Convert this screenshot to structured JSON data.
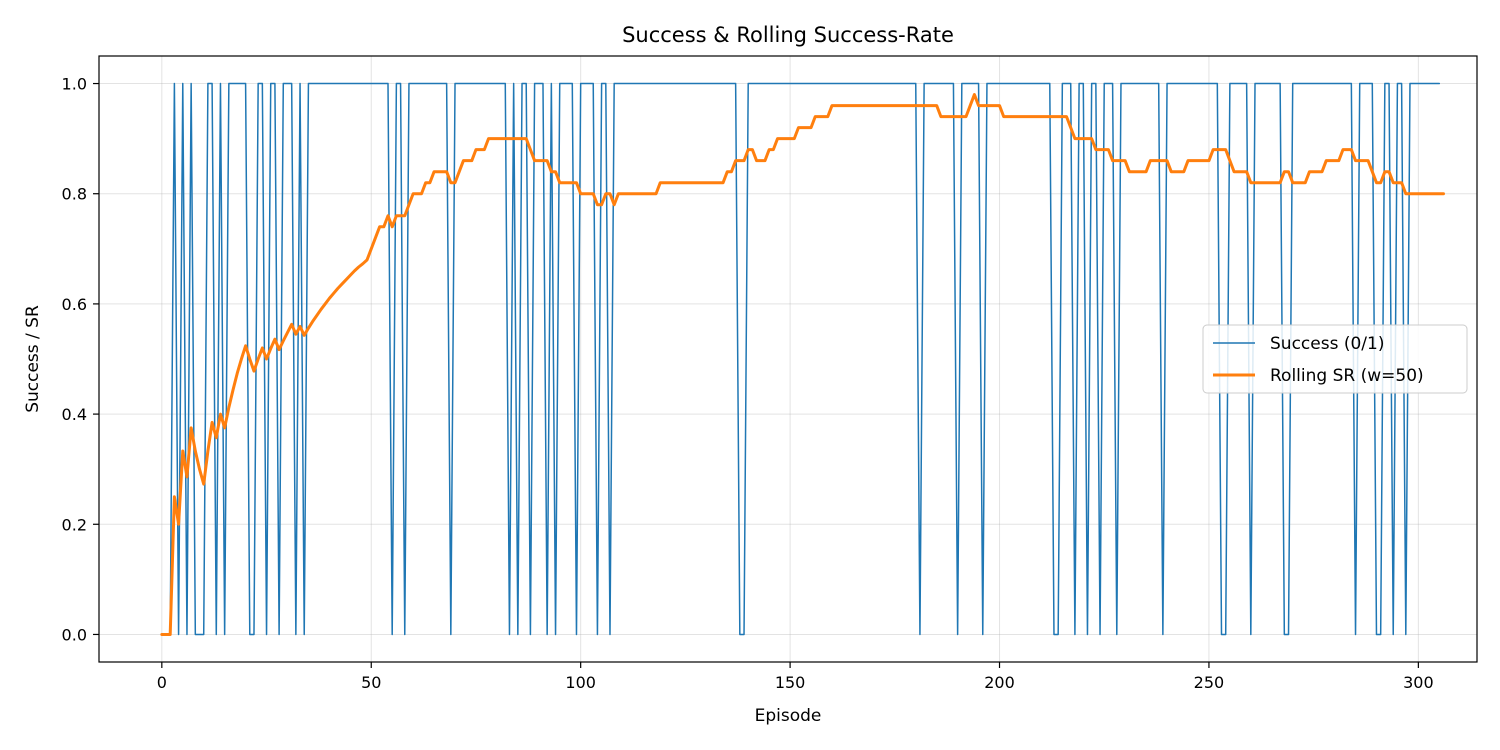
{
  "chart_data": {
    "type": "line",
    "title": "Success & Rolling Success-Rate",
    "xlabel": "Episode",
    "ylabel": "Success / SR",
    "xlim": [
      -15,
      314
    ],
    "ylim": [
      -0.05,
      1.05
    ],
    "xticks": [
      0,
      50,
      100,
      150,
      200,
      250,
      300
    ],
    "yticks": [
      0.0,
      0.2,
      0.4,
      0.6,
      0.8,
      1.0
    ],
    "xtick_labels": [
      "0",
      "50",
      "100",
      "150",
      "200",
      "250",
      "300"
    ],
    "ytick_labels": [
      "0.0",
      "0.2",
      "0.4",
      "0.6",
      "0.8",
      "1.0"
    ],
    "grid": true,
    "legend_position": "center-right",
    "colors": {
      "success": "#1f77b4",
      "rolling": "#ff7f0e"
    },
    "series": [
      {
        "name": "Success (0/1)",
        "x_start": 0,
        "values": [
          0,
          0,
          0,
          1,
          0,
          1,
          0,
          1,
          0,
          0,
          0,
          1,
          1,
          0,
          1,
          0,
          1,
          1,
          1,
          1,
          1,
          0,
          0,
          1,
          1,
          0,
          1,
          1,
          0,
          1,
          1,
          1,
          0,
          1,
          0,
          1,
          1,
          1,
          1,
          1,
          1,
          1,
          1,
          1,
          1,
          1,
          1,
          1,
          1,
          1,
          1,
          1,
          1,
          1,
          1,
          0,
          1,
          1,
          0,
          1,
          1,
          1,
          1,
          1,
          1,
          1,
          1,
          1,
          1,
          0,
          1,
          1,
          1,
          1,
          1,
          1,
          1,
          1,
          1,
          1,
          1,
          1,
          1,
          0,
          1,
          0,
          1,
          1,
          0,
          1,
          1,
          1,
          0,
          1,
          0,
          1,
          1,
          1,
          1,
          0,
          1,
          1,
          1,
          1,
          0,
          1,
          1,
          0,
          1,
          1,
          1,
          1,
          1,
          1,
          1,
          1,
          1,
          1,
          1,
          1,
          1,
          1,
          1,
          1,
          1,
          1,
          1,
          1,
          1,
          1,
          1,
          1,
          1,
          1,
          1,
          1,
          1,
          1,
          0,
          0,
          1,
          1,
          1,
          1,
          1,
          1,
          1,
          1,
          1,
          1,
          1,
          1,
          1,
          1,
          1,
          1,
          1,
          1,
          1,
          1,
          1,
          1,
          1,
          1,
          1,
          1,
          1,
          1,
          1,
          1,
          1,
          1,
          1,
          1,
          1,
          1,
          1,
          1,
          1,
          1,
          1,
          0,
          1,
          1,
          1,
          1,
          1,
          1,
          1,
          1,
          0,
          1,
          1,
          1,
          1,
          1,
          0,
          1,
          1,
          1,
          1,
          1,
          1,
          1,
          1,
          1,
          1,
          1,
          1,
          1,
          1,
          1,
          1,
          0,
          0,
          1,
          1,
          1,
          0,
          1,
          1,
          0,
          1,
          1,
          0,
          1,
          1,
          1,
          0,
          1,
          1,
          1,
          1,
          1,
          1,
          1,
          1,
          1,
          1,
          0,
          1,
          1,
          1,
          1,
          1,
          1,
          1,
          1,
          1,
          1,
          1,
          1,
          1,
          0,
          0,
          1,
          1,
          1,
          1,
          1,
          0,
          1,
          1,
          1,
          1,
          1,
          1,
          1,
          0,
          0,
          1,
          1,
          1,
          1,
          1,
          1,
          1,
          1,
          1,
          1,
          1,
          1,
          1,
          1,
          1,
          0,
          1,
          1,
          1,
          1,
          0,
          0,
          1,
          1,
          0,
          1,
          1,
          0,
          1,
          1,
          1,
          1,
          1,
          1,
          1,
          1
        ]
      },
      {
        "name": "Rolling SR (w=50)",
        "x_start": 0,
        "values": [
          0.0,
          0.0,
          0.0,
          0.25,
          0.2,
          0.333,
          0.286,
          0.375,
          0.333,
          0.3,
          0.273,
          0.333,
          0.385,
          0.357,
          0.4,
          0.375,
          0.412,
          0.444,
          0.474,
          0.5,
          0.524,
          0.5,
          0.478,
          0.5,
          0.52,
          0.5,
          0.519,
          0.536,
          0.517,
          0.533,
          0.548,
          0.563,
          0.545,
          0.559,
          0.543,
          0.556,
          0.568,
          0.579,
          0.59,
          0.6,
          0.61,
          0.619,
          0.628,
          0.636,
          0.644,
          0.652,
          0.66,
          0.667,
          0.673,
          0.68,
          0.7,
          0.72,
          0.74,
          0.74,
          0.76,
          0.74,
          0.76,
          0.76,
          0.76,
          0.78,
          0.8,
          0.8,
          0.8,
          0.82,
          0.82,
          0.84,
          0.84,
          0.84,
          0.84,
          0.82,
          0.82,
          0.84,
          0.86,
          0.86,
          0.86,
          0.88,
          0.88,
          0.88,
          0.9,
          0.9,
          0.9,
          0.9,
          0.9,
          0.9,
          0.9,
          0.9,
          0.9,
          0.9,
          0.88,
          0.86,
          0.86,
          0.86,
          0.86,
          0.84,
          0.84,
          0.82,
          0.82,
          0.82,
          0.82,
          0.82,
          0.8,
          0.8,
          0.8,
          0.8,
          0.78,
          0.78,
          0.8,
          0.8,
          0.78,
          0.8,
          0.8,
          0.8,
          0.8,
          0.8,
          0.8,
          0.8,
          0.8,
          0.8,
          0.8,
          0.82,
          0.82,
          0.82,
          0.82,
          0.82,
          0.82,
          0.82,
          0.82,
          0.82,
          0.82,
          0.82,
          0.82,
          0.82,
          0.82,
          0.82,
          0.82,
          0.84,
          0.84,
          0.86,
          0.86,
          0.86,
          0.88,
          0.88,
          0.86,
          0.86,
          0.86,
          0.88,
          0.88,
          0.9,
          0.9,
          0.9,
          0.9,
          0.9,
          0.92,
          0.92,
          0.92,
          0.92,
          0.94,
          0.94,
          0.94,
          0.94,
          0.96,
          0.96,
          0.96,
          0.96,
          0.96,
          0.96,
          0.96,
          0.96,
          0.96,
          0.96,
          0.96,
          0.96,
          0.96,
          0.96,
          0.96,
          0.96,
          0.96,
          0.96,
          0.96,
          0.96,
          0.96,
          0.96,
          0.96,
          0.96,
          0.96,
          0.96,
          0.94,
          0.94,
          0.94,
          0.94,
          0.94,
          0.94,
          0.94,
          0.96,
          0.98,
          0.96,
          0.96,
          0.96,
          0.96,
          0.96,
          0.96,
          0.94,
          0.94,
          0.94,
          0.94,
          0.94,
          0.94,
          0.94,
          0.94,
          0.94,
          0.94,
          0.94,
          0.94,
          0.94,
          0.94,
          0.94,
          0.94,
          0.92,
          0.9,
          0.9,
          0.9,
          0.9,
          0.9,
          0.88,
          0.88,
          0.88,
          0.88,
          0.86,
          0.86,
          0.86,
          0.86,
          0.84,
          0.84,
          0.84,
          0.84,
          0.84,
          0.86,
          0.86,
          0.86,
          0.86,
          0.86,
          0.84,
          0.84,
          0.84,
          0.84,
          0.86,
          0.86,
          0.86,
          0.86,
          0.86,
          0.86,
          0.88,
          0.88,
          0.88,
          0.88,
          0.86,
          0.84,
          0.84,
          0.84,
          0.84,
          0.82,
          0.82,
          0.82,
          0.82,
          0.82,
          0.82,
          0.82,
          0.82,
          0.84,
          0.84,
          0.82,
          0.82,
          0.82,
          0.82,
          0.84,
          0.84,
          0.84,
          0.84,
          0.86,
          0.86,
          0.86,
          0.86,
          0.88,
          0.88,
          0.88,
          0.86,
          0.86,
          0.86,
          0.86,
          0.84,
          0.82,
          0.82,
          0.84,
          0.84,
          0.82,
          0.82,
          0.82,
          0.8,
          0.8,
          0.8,
          0.8,
          0.8,
          0.8,
          0.8,
          0.8,
          0.8,
          0.8
        ]
      }
    ]
  }
}
